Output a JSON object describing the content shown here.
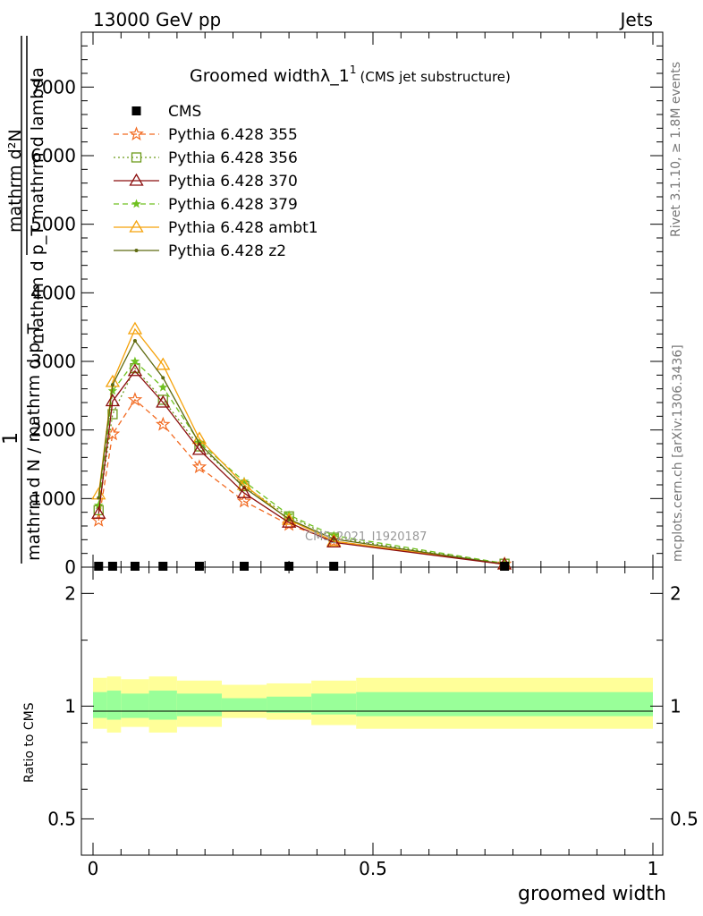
{
  "header": {
    "left": "13000 GeV pp",
    "right": "Jets"
  },
  "side": {
    "rivet": "Rivet 3.1.10, ≥ 1.8M events",
    "mcplots": "mcplots.cern.ch [arXiv:1306.3436]"
  },
  "watermark": "CMS_2021_I1920187",
  "title": {
    "main": "Groomed widthλ_1",
    "sup": "1",
    "sub": "(CMS jet substructure)"
  },
  "ylabel_main": {
    "num_prefix": "1",
    "denominator": "mathrm d N / mathrm d p_T",
    "top_numerator": "mathrm d²N",
    "top_denominator": "mathrm d p_T mathrm d lambda"
  },
  "xlabel": "groomed width",
  "ratio_ylabel": "Ratio to CMS",
  "colors": {
    "cms": "#000000",
    "p355": "#f26a21",
    "p356": "#6c9a1a",
    "p370": "#8b0e0e",
    "p379": "#6fc020",
    "ambt1": "#f5a20a",
    "z2": "#5e6a10",
    "band_inner": "#99ff99",
    "band_outer": "#ffff99"
  },
  "chart_data": [
    {
      "type": "line",
      "xlim": [
        -0.02,
        1.02
      ],
      "ylim": [
        0,
        7800
      ],
      "yticks": [
        0,
        1000,
        2000,
        3000,
        4000,
        5000,
        6000,
        7000
      ],
      "ytick_labels": [
        "0",
        "1000",
        "2000",
        "3000",
        "4000",
        "5000",
        "6000",
        "7000"
      ],
      "legend_position": "top-left",
      "x": [
        0.01,
        0.035,
        0.075,
        0.125,
        0.19,
        0.27,
        0.35,
        0.43,
        0.735
      ],
      "series": [
        {
          "name": "CMS",
          "key": "cms",
          "marker": "square",
          "dash": "none",
          "values": [
            0,
            0,
            0,
            0,
            0,
            0,
            0,
            0,
            0
          ]
        },
        {
          "name": "Pythia 6.428 355",
          "key": "p355",
          "marker": "star",
          "dash": "dashed",
          "values": [
            680,
            1940,
            2440,
            2080,
            1460,
            960,
            620,
            380,
            45
          ]
        },
        {
          "name": "Pythia 6.428 356",
          "key": "p356",
          "marker": "square-open",
          "dash": "dotted",
          "values": [
            830,
            2230,
            2900,
            2440,
            1760,
            1180,
            740,
            430,
            50
          ]
        },
        {
          "name": "Pythia 6.428 370",
          "key": "p370",
          "marker": "triangle-open",
          "dash": "solid",
          "values": [
            780,
            2420,
            2860,
            2400,
            1710,
            1080,
            650,
            360,
            40
          ]
        },
        {
          "name": "Pythia 6.428 379",
          "key": "p379",
          "marker": "star-filled",
          "dash": "dashed",
          "values": [
            900,
            2570,
            3000,
            2620,
            1820,
            1250,
            760,
            460,
            55
          ]
        },
        {
          "name": "Pythia 6.428 ambt1",
          "key": "ambt1",
          "marker": "triangle-open",
          "dash": "solid",
          "values": [
            1060,
            2700,
            3470,
            2950,
            1870,
            1200,
            690,
            380,
            40
          ]
        },
        {
          "name": "Pythia 6.428 z2",
          "key": "z2",
          "marker": "dot",
          "dash": "solid",
          "values": [
            1010,
            2660,
            3300,
            2760,
            1800,
            1160,
            700,
            410,
            45
          ]
        }
      ]
    },
    {
      "type": "area",
      "xlim": [
        -0.02,
        1.02
      ],
      "ylim": [
        0.4,
        2.35
      ],
      "ylog": true,
      "yticks": [
        0.5,
        1,
        2
      ],
      "ytick_labels": [
        "0.5",
        "1",
        "2"
      ],
      "xticks": [
        0,
        0.5,
        1
      ],
      "xtick_labels": [
        "0",
        "0.5",
        "1"
      ],
      "bin_edges": [
        0,
        0.025,
        0.05,
        0.1,
        0.15,
        0.23,
        0.31,
        0.39,
        0.47,
        1.0
      ],
      "outer_band": [
        [
          0.87,
          1.19
        ],
        [
          0.85,
          1.2
        ],
        [
          0.88,
          1.18
        ],
        [
          0.85,
          1.2
        ],
        [
          0.88,
          1.17
        ],
        [
          0.93,
          1.14
        ],
        [
          0.92,
          1.15
        ],
        [
          0.89,
          1.17
        ],
        [
          0.87,
          1.19
        ]
      ],
      "inner_band": [
        [
          0.93,
          1.09
        ],
        [
          0.92,
          1.1
        ],
        [
          0.93,
          1.08
        ],
        [
          0.92,
          1.1
        ],
        [
          0.94,
          1.08
        ],
        [
          0.97,
          1.05
        ],
        [
          0.96,
          1.06
        ],
        [
          0.95,
          1.08
        ],
        [
          0.94,
          1.09
        ]
      ],
      "reference": 1
    }
  ]
}
